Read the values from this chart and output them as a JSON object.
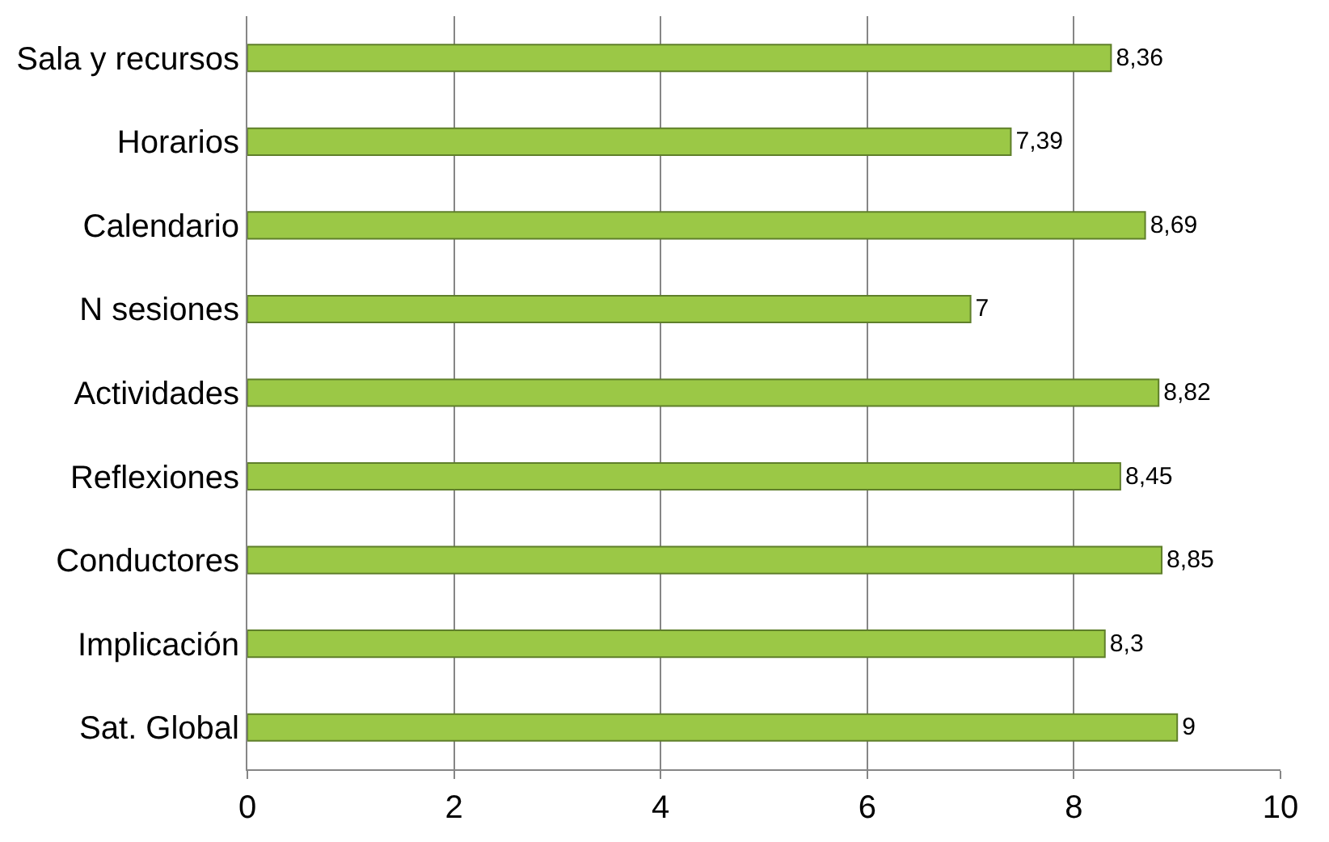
{
  "chart_data": {
    "type": "bar",
    "orientation": "horizontal",
    "categories": [
      "Sala y recursos",
      "Horarios",
      "Calendario",
      "N sesiones",
      "Actividades",
      "Reflexiones",
      "Conductores",
      "Implicación",
      "Sat. Global"
    ],
    "values": [
      8.36,
      7.39,
      8.69,
      7,
      8.82,
      8.45,
      8.85,
      8.3,
      9
    ],
    "value_labels": [
      "8,36",
      "7,39",
      "8,69",
      "7",
      "8,82",
      "8,45",
      "8,85",
      "8,3",
      "9"
    ],
    "color": "#9bc846",
    "xlim": [
      0,
      10
    ],
    "xticks": [
      0,
      2,
      4,
      6,
      8,
      10
    ],
    "grid": "x",
    "legend": false
  }
}
